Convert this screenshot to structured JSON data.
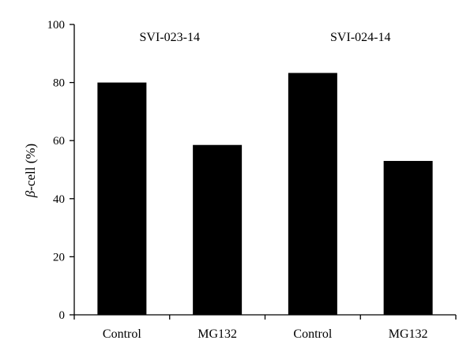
{
  "chart_data": {
    "type": "bar",
    "title": "",
    "xlabel": "",
    "ylabel": {
      "symbol": "β",
      "rest": "-cell (%)"
    },
    "ylim": [
      0,
      100
    ],
    "yticks": [
      "0",
      "20",
      "40",
      "60",
      "80",
      "100"
    ],
    "categories": [
      "Control",
      "MG132",
      "Control",
      "MG132"
    ],
    "values": [
      80,
      58.5,
      83.3,
      53
    ],
    "groups": [
      {
        "label": "SVI-023-14",
        "categories": [
          "Control",
          "MG132"
        ]
      },
      {
        "label": "SVI-024-14",
        "categories": [
          "Control",
          "MG132"
        ]
      }
    ],
    "bar_color": "#000000",
    "grid": false,
    "legend": "none"
  }
}
